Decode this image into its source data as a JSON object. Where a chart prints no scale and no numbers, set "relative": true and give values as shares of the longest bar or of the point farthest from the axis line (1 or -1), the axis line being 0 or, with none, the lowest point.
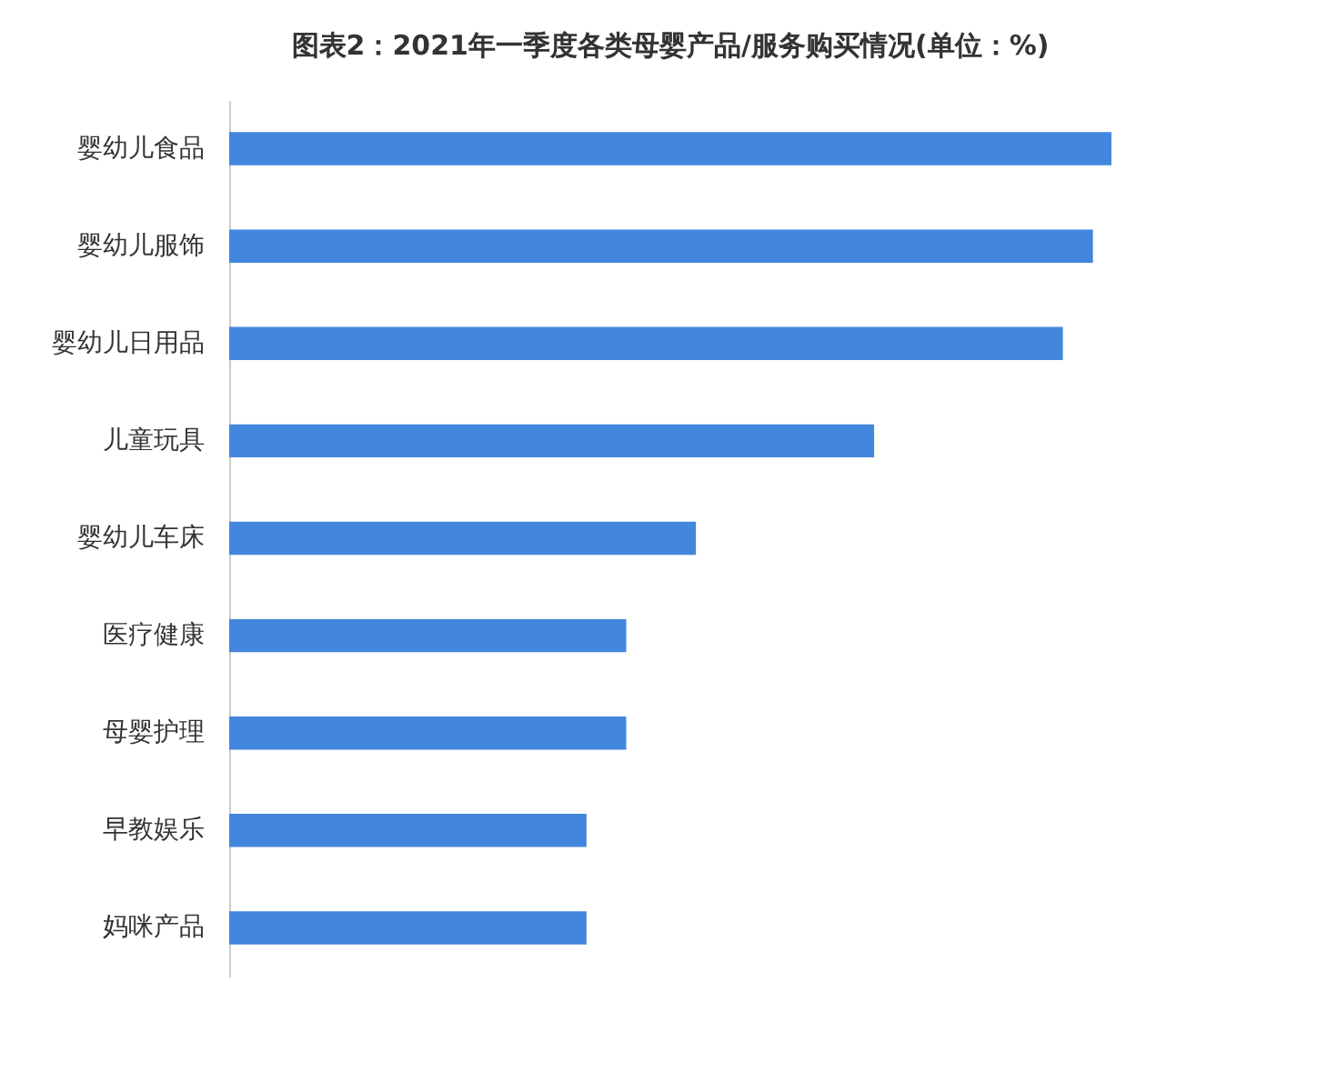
{
  "chart_data": {
    "type": "bar",
    "orientation": "horizontal",
    "relative": true,
    "title": "图表2：2021年一季度各类母婴产品/服务购买情况(单位：%)",
    "categories": [
      "婴幼儿食品",
      "婴幼儿服饰",
      "婴幼儿日用品",
      "儿童玩具",
      "婴幼儿车床",
      "医疗健康",
      "母婴护理",
      "早教娱乐",
      "妈咪产品"
    ],
    "values": [
      1,
      0.979,
      0.945,
      0.731,
      0.529,
      0.45,
      0.45,
      0.405,
      0.405
    ],
    "color": "#4286de"
  }
}
